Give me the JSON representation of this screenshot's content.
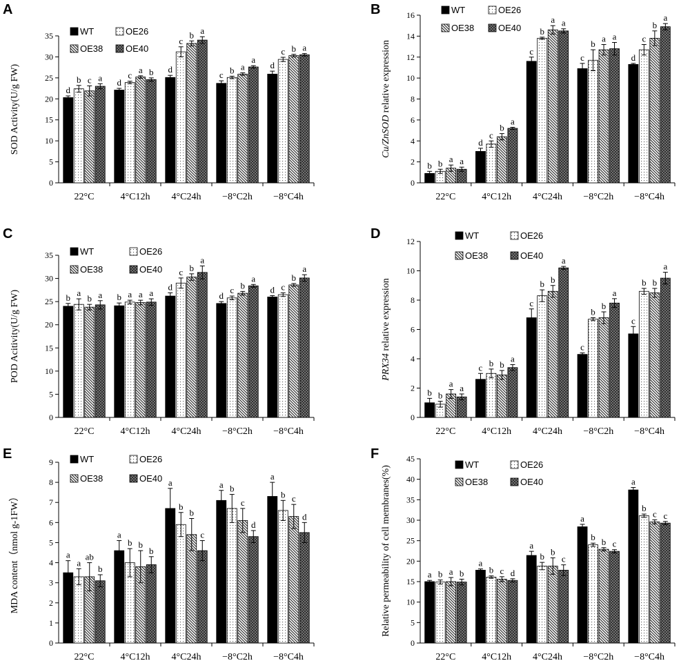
{
  "legend_labels": [
    "WT",
    "OE26",
    "OE38",
    "OE40"
  ],
  "chart_data": [
    {
      "panel": "A",
      "type": "bar",
      "categories": [
        "22°C",
        "4°C12h",
        "4°C24h",
        "−8°C2h",
        "−8°C4h"
      ],
      "ylabel": "SOD Activity(U/g FW)",
      "ylabel_italic": "",
      "ylim": [
        0,
        35
      ],
      "ystep": 5,
      "series": [
        {
          "name": "WT",
          "values": [
            20.3,
            22.1,
            25.1,
            23.7,
            25.9
          ],
          "errors": [
            0.4,
            0.4,
            0.5,
            0.6,
            0.7
          ],
          "letters": [
            "d",
            "d",
            "d",
            "c",
            "d"
          ]
        },
        {
          "name": "OE26",
          "values": [
            22.4,
            23.9,
            31.2,
            25.1,
            29.4
          ],
          "errors": [
            0.8,
            0.3,
            1.2,
            0.3,
            0.5
          ],
          "letters": [
            "b",
            "c",
            "c",
            "b",
            "c"
          ]
        },
        {
          "name": "OE38",
          "values": [
            21.9,
            25.2,
            33.2,
            25.9,
            30.3
          ],
          "errors": [
            1.2,
            0.3,
            0.6,
            0.3,
            0.3
          ],
          "letters": [
            "c",
            "a",
            "b",
            "a",
            "b"
          ]
        },
        {
          "name": "OE40",
          "values": [
            23.0,
            24.6,
            34.0,
            27.6,
            30.5
          ],
          "errors": [
            0.6,
            0.4,
            0.8,
            0.3,
            0.3
          ],
          "letters": [
            "a",
            "b",
            "a",
            "a",
            "a"
          ]
        }
      ]
    },
    {
      "panel": "B",
      "type": "bar",
      "categories": [
        "22°C",
        "4°C12h",
        "4°C24h",
        "−8°C2h",
        "−8°C4h"
      ],
      "ylabel": " relative expression",
      "ylabel_italic": "Cu/ZnSOD",
      "ylim": [
        0,
        16
      ],
      "ystep": 2,
      "series": [
        {
          "name": "WT",
          "values": [
            0.9,
            3.0,
            11.6,
            10.9,
            11.3
          ],
          "errors": [
            0.2,
            0.3,
            0.4,
            0.5,
            0.1
          ],
          "letters": [
            "b",
            "d",
            "c",
            "c",
            "d"
          ]
        },
        {
          "name": "OE26",
          "values": [
            1.1,
            3.7,
            13.8,
            11.7,
            12.7
          ],
          "errors": [
            0.2,
            0.3,
            0.1,
            1.0,
            0.5
          ],
          "letters": [
            "b",
            "c",
            "b",
            "b",
            "c"
          ]
        },
        {
          "name": "OE38",
          "values": [
            1.4,
            4.4,
            14.6,
            12.7,
            13.8
          ],
          "errors": [
            0.3,
            0.3,
            0.4,
            0.5,
            0.7
          ],
          "letters": [
            "a",
            "b",
            "a",
            "a",
            "b"
          ]
        },
        {
          "name": "OE40",
          "values": [
            1.3,
            5.2,
            14.5,
            12.8,
            14.9
          ],
          "errors": [
            0.2,
            0.1,
            0.2,
            0.6,
            0.3
          ],
          "letters": [
            "a",
            "a",
            "a",
            "a",
            "a"
          ]
        }
      ]
    },
    {
      "panel": "C",
      "type": "bar",
      "categories": [
        "22°C",
        "4°C12h",
        "4°C24h",
        "−8°C2h",
        "−8°C4h"
      ],
      "ylabel": "POD Acitivity(U/g FW)",
      "ylabel_italic": "",
      "ylim": [
        0,
        35
      ],
      "ystep": 5,
      "series": [
        {
          "name": "WT",
          "values": [
            24.0,
            24.1,
            26.2,
            24.6,
            26.0
          ],
          "errors": [
            0.6,
            0.6,
            0.7,
            0.4,
            0.3
          ],
          "letters": [
            "b",
            "b",
            "d",
            "d",
            "d"
          ]
        },
        {
          "name": "OE26",
          "values": [
            24.4,
            24.9,
            29.0,
            25.8,
            26.5
          ],
          "errors": [
            1.2,
            0.4,
            1.1,
            0.4,
            0.4
          ],
          "letters": [
            "a",
            "a",
            "c",
            "c",
            "c"
          ]
        },
        {
          "name": "OE38",
          "values": [
            23.8,
            24.8,
            30.3,
            26.8,
            28.6
          ],
          "errors": [
            0.6,
            0.5,
            0.7,
            0.4,
            0.3
          ],
          "letters": [
            "b",
            "a",
            "b",
            "b",
            "b"
          ]
        },
        {
          "name": "OE40",
          "values": [
            24.3,
            24.9,
            31.3,
            28.4,
            30.1
          ],
          "errors": [
            0.9,
            0.7,
            1.4,
            0.3,
            0.7
          ],
          "letters": [
            "a",
            "a",
            "a",
            "a",
            "a"
          ]
        }
      ]
    },
    {
      "panel": "D",
      "type": "bar",
      "categories": [
        "22°C",
        "4°C12h",
        "4°C24h",
        "−8°C2h",
        "−8°C4h"
      ],
      "ylabel": " relative expression",
      "ylabel_italic": "PRX34",
      "ylim": [
        0,
        12
      ],
      "ystep": 2,
      "series": [
        {
          "name": "WT",
          "values": [
            1.0,
            2.6,
            6.8,
            4.3,
            5.7
          ],
          "errors": [
            0.3,
            0.4,
            0.6,
            0.1,
            0.5
          ],
          "letters": [
            "b",
            "c",
            "c",
            "c",
            "c"
          ]
        },
        {
          "name": "OE26",
          "values": [
            0.9,
            3.0,
            8.3,
            6.7,
            8.6
          ],
          "errors": [
            0.2,
            0.3,
            0.4,
            0.1,
            0.2
          ],
          "letters": [
            "b",
            "b",
            "b",
            "b",
            "b"
          ]
        },
        {
          "name": "OE38",
          "values": [
            1.6,
            2.9,
            8.6,
            6.8,
            8.5
          ],
          "errors": [
            0.3,
            0.3,
            0.4,
            0.4,
            0.3
          ],
          "letters": [
            "a",
            "b",
            "b",
            "b",
            "b"
          ]
        },
        {
          "name": "OE40",
          "values": [
            1.4,
            3.4,
            10.2,
            7.8,
            9.5
          ],
          "errors": [
            0.2,
            0.2,
            0.1,
            0.3,
            0.4
          ],
          "letters": [
            "a",
            "a",
            "a",
            "a",
            "a"
          ]
        }
      ]
    },
    {
      "panel": "E",
      "type": "bar",
      "categories": [
        "22°C",
        "4°C12h",
        "4°C24h",
        "−8°C2h",
        "−8°C4h"
      ],
      "ylabel": "MDA content（nmol g-1FW）",
      "ylabel_italic": "",
      "ylim": [
        0,
        9
      ],
      "ystep": 1,
      "series": [
        {
          "name": "WT",
          "values": [
            3.5,
            4.6,
            6.7,
            7.1,
            7.3
          ],
          "errors": [
            0.6,
            0.5,
            1.0,
            0.5,
            0.7
          ],
          "letters": [
            "a",
            "a",
            "a",
            "a",
            "a"
          ]
        },
        {
          "name": "OE26",
          "values": [
            3.3,
            4.0,
            5.9,
            6.7,
            6.6
          ],
          "errors": [
            0.4,
            0.7,
            0.6,
            0.7,
            0.5
          ],
          "letters": [
            "a",
            "b",
            "b",
            "b",
            "b"
          ]
        },
        {
          "name": "OE38",
          "values": [
            3.3,
            3.8,
            5.4,
            6.1,
            6.3
          ],
          "errors": [
            0.7,
            0.8,
            0.8,
            0.6,
            0.6
          ],
          "letters": [
            "ab",
            "b",
            "b",
            "c",
            "c"
          ]
        },
        {
          "name": "OE40",
          "values": [
            3.1,
            3.9,
            4.6,
            5.3,
            5.5
          ],
          "errors": [
            0.3,
            0.4,
            0.5,
            0.3,
            0.5
          ],
          "letters": [
            "b",
            "b",
            "c",
            "d",
            "d"
          ]
        }
      ]
    },
    {
      "panel": "F",
      "type": "bar",
      "categories": [
        "22°C",
        "4°C12h",
        "4°C24h",
        "−8°C2h",
        "−8°C4h"
      ],
      "ylabel": "Relative permeability of cell membranes(%)",
      "ylabel_italic": "",
      "ylim": [
        0,
        45
      ],
      "ystep": 5,
      "series": [
        {
          "name": "WT",
          "values": [
            15.0,
            17.8,
            21.4,
            28.4,
            37.4
          ],
          "errors": [
            0.3,
            0.3,
            1.0,
            0.6,
            0.6
          ],
          "letters": [
            "a",
            "a",
            "a",
            "a",
            "a"
          ]
        },
        {
          "name": "OE26",
          "values": [
            14.9,
            16.1,
            18.8,
            24.0,
            31.1
          ],
          "errors": [
            0.5,
            0.3,
            0.9,
            0.4,
            0.4
          ],
          "letters": [
            "b",
            "b",
            "b",
            "b",
            "b"
          ]
        },
        {
          "name": "OE38",
          "values": [
            15.0,
            15.6,
            18.8,
            22.9,
            29.6
          ],
          "errors": [
            1.0,
            0.6,
            2.0,
            0.4,
            0.5
          ],
          "letters": [
            "a",
            "c",
            "b",
            "b",
            "c"
          ]
        },
        {
          "name": "OE40",
          "values": [
            14.9,
            15.3,
            17.8,
            22.4,
            29.3
          ],
          "errors": [
            0.7,
            0.4,
            1.3,
            0.4,
            0.4
          ],
          "letters": [
            "b",
            "d",
            "c",
            "c",
            "c"
          ]
        }
      ]
    }
  ]
}
